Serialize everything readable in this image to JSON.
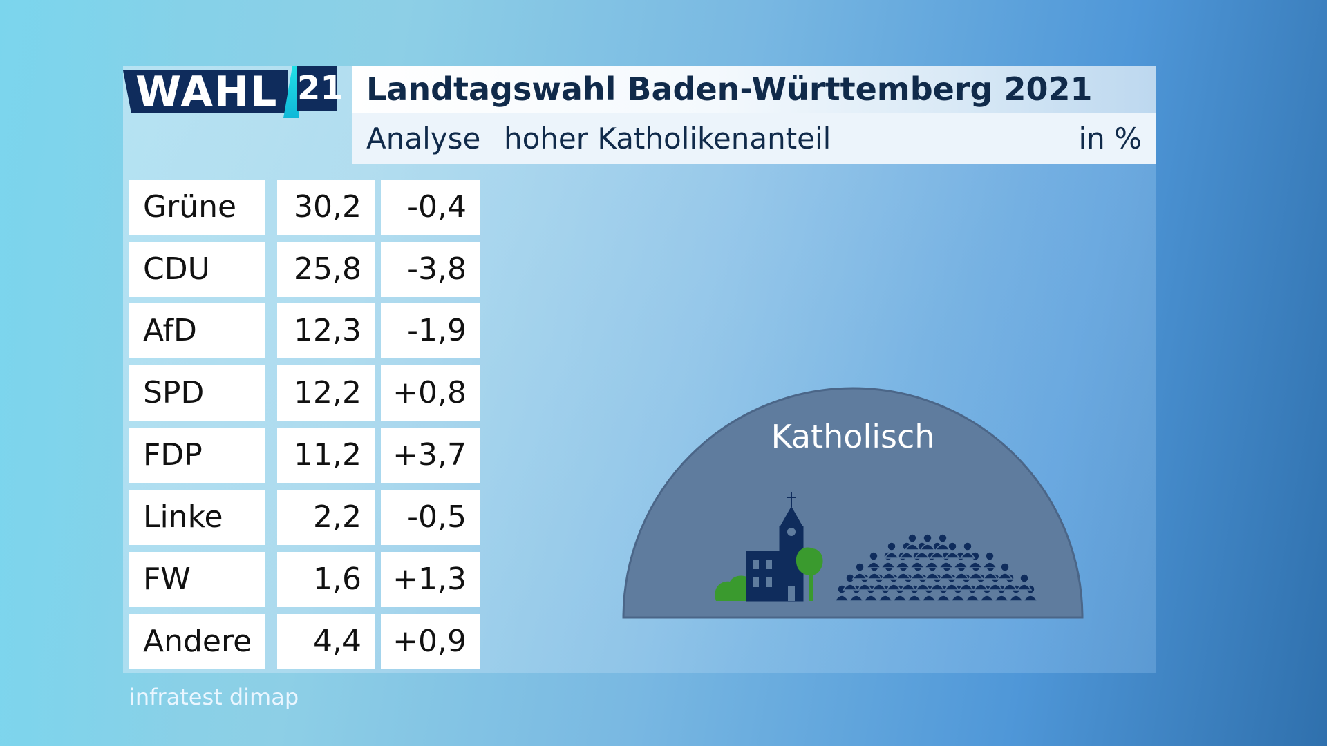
{
  "header": {
    "logo_word": "WAHL",
    "logo_number": "21",
    "title": "Landtagswahl Baden-Württemberg 2021",
    "subtitle_analyse": "Analyse",
    "subtitle_filter": "hoher Katholikenanteil",
    "unit": "in %"
  },
  "colors": {
    "navy": "#0f2c5c",
    "dome": "#5f7c9e",
    "tree_green": "#3a9a2e",
    "accent_cyan": "#22e0e6"
  },
  "illustration": {
    "label": "Katholisch",
    "icons": [
      "church-icon",
      "tree-icon",
      "bush-icon",
      "crowd-icon"
    ]
  },
  "chart_data": {
    "type": "table",
    "title": "Landtagswahl Baden-Württemberg 2021",
    "subtitle": "hoher Katholikenanteil",
    "unit": "in %",
    "rows": [
      {
        "party": "Grüne",
        "value": "30,2",
        "change": "-0,4"
      },
      {
        "party": "CDU",
        "value": "25,8",
        "change": "-3,8"
      },
      {
        "party": "AfD",
        "value": "12,3",
        "change": "-1,9"
      },
      {
        "party": "SPD",
        "value": "12,2",
        "change": "+0,8"
      },
      {
        "party": "FDP",
        "value": "11,2",
        "change": "+3,7"
      },
      {
        "party": "Linke",
        "value": "2,2",
        "change": "-0,5"
      },
      {
        "party": "FW",
        "value": "1,6",
        "change": "+1,3"
      },
      {
        "party": "Andere",
        "value": "4,4",
        "change": "+0,9"
      }
    ]
  },
  "footer": {
    "source": "infratest dimap"
  }
}
